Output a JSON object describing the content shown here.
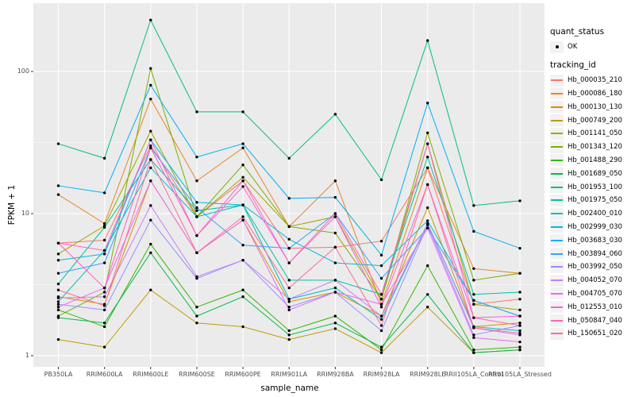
{
  "chart_data": {
    "type": "line",
    "title": "",
    "xlabel": "sample_name",
    "ylabel": "FPKM + 1",
    "y_scale": "log10",
    "ylim": [
      0.83,
      300
    ],
    "y_ticks": [
      {
        "label": "1",
        "value": 1
      },
      {
        "label": "10",
        "value": 10
      },
      {
        "label": "100",
        "value": 100
      }
    ],
    "y_minor_ticks": [
      3.162,
      31.62,
      316
    ],
    "grid": "on",
    "panel_bg": "#EBEBEB",
    "grid_color": "#FFFFFF",
    "point_color": "#000000",
    "legend_position": "right",
    "categories": [
      "PB350LA",
      "RRIM600LA",
      "RRIM600LE",
      "RRIM600SE",
      "RRIM600PE",
      "RRIM901LA",
      "RRIM928BA",
      "RRIM928LA",
      "RRIM928LE",
      "RRII105LA_Control",
      "RRII105LA_Stressed"
    ],
    "series": [
      {
        "name": "Hb_000035_210",
        "color": "#F8766D",
        "values": [
          6.2,
          6.5,
          30,
          9.5,
          17,
          5.7,
          5.8,
          6.4,
          21,
          2.3,
          2.5
        ]
      },
      {
        "name": "Hb_000086_180",
        "color": "#E88526",
        "values": [
          13.6,
          8.5,
          64,
          17,
          29,
          8.1,
          17,
          2.3,
          21,
          4.1,
          3.8
        ]
      },
      {
        "name": "Hb_000130_130",
        "color": "#D89000",
        "values": [
          2.6,
          2.3,
          17,
          5.3,
          9,
          2.4,
          2.8,
          1.9,
          11,
          1.6,
          1.7
        ]
      },
      {
        "name": "Hb_000749_200",
        "color": "#C09B00",
        "values": [
          1.3,
          1.15,
          2.9,
          1.7,
          1.6,
          1.3,
          1.55,
          1.05,
          2.2,
          1.05,
          1.1
        ]
      },
      {
        "name": "Hb_001141_050",
        "color": "#A3A500",
        "values": [
          5.2,
          8.2,
          38,
          9.5,
          18,
          8.1,
          9.5,
          2.5,
          31,
          2.3,
          2.1
        ]
      },
      {
        "name": "Hb_001343_120",
        "color": "#7CAE00",
        "values": [
          1.9,
          2.8,
          105,
          9.5,
          22,
          8.1,
          7.3,
          2.5,
          37,
          3.4,
          3.8
        ]
      },
      {
        "name": "Hb_001488_290",
        "color": "#39B600",
        "values": [
          2.1,
          1.6,
          6.1,
          2.2,
          2.9,
          1.5,
          1.9,
          1.1,
          4.3,
          1.1,
          1.15
        ]
      },
      {
        "name": "Hb_001689_050",
        "color": "#00BB4E",
        "values": [
          1.85,
          1.7,
          5.3,
          1.9,
          2.6,
          1.4,
          1.7,
          1.15,
          2.7,
          1.05,
          1.1
        ]
      },
      {
        "name": "Hb_001953_100",
        "color": "#00BF7D",
        "values": [
          31,
          24.5,
          230,
          52,
          52,
          24.5,
          50,
          17.3,
          165,
          11.4,
          12.3
        ]
      },
      {
        "name": "Hb_001975_050",
        "color": "#00C1A3",
        "values": [
          3.2,
          8.0,
          24,
          10.5,
          11.5,
          3.4,
          3.4,
          2.7,
          25,
          2.7,
          2.8
        ]
      },
      {
        "name": "Hb_002400_010",
        "color": "#00BFC4",
        "values": [
          2.4,
          5.5,
          21,
          9.5,
          11.5,
          2.5,
          3.0,
          1.8,
          8.5,
          1.6,
          1.5
        ]
      },
      {
        "name": "Hb_002999_030",
        "color": "#00BAE0",
        "values": [
          4.7,
          5.2,
          33,
          12,
          11.5,
          6.6,
          4.5,
          4.3,
          8.9,
          2.45,
          1.9
        ]
      },
      {
        "name": "Hb_003683_030",
        "color": "#00B0F6",
        "values": [
          15.7,
          14,
          80,
          25,
          31,
          12.8,
          13,
          5.1,
          60,
          7.5,
          5.7
        ]
      },
      {
        "name": "Hb_003894_060",
        "color": "#35A2FF",
        "values": [
          3.8,
          4.5,
          29,
          11,
          6,
          5.7,
          10,
          3.5,
          7.9,
          2.45,
          1.9
        ]
      },
      {
        "name": "Hb_003992_050",
        "color": "#9590FF",
        "values": [
          2.3,
          2.1,
          9,
          3.5,
          4.7,
          2.2,
          2.8,
          1.5,
          8.3,
          1.4,
          1.63
        ]
      },
      {
        "name": "Hb_004052_070",
        "color": "#C77CFF",
        "values": [
          2.55,
          2.6,
          11.4,
          3.6,
          4.7,
          2.5,
          3.4,
          1.9,
          8.5,
          1.57,
          1.4
        ]
      },
      {
        "name": "Hb_004705_070",
        "color": "#E76BF3",
        "values": [
          2.2,
          3.0,
          17,
          5.3,
          9,
          2.1,
          2.8,
          2.3,
          7.9,
          1.34,
          1.25
        ]
      },
      {
        "name": "Hb_012553_010",
        "color": "#FA62DB",
        "values": [
          6.2,
          5.5,
          33,
          7,
          17,
          4.5,
          9.5,
          2.2,
          16,
          1.85,
          1.9
        ]
      },
      {
        "name": "Hb_050847_040",
        "color": "#FF62BC",
        "values": [
          6.2,
          3.0,
          29,
          7,
          15.5,
          4.5,
          10,
          2.7,
          31,
          1.85,
          1.63
        ]
      },
      {
        "name": "Hb_150651_020",
        "color": "#FF6A98",
        "values": [
          2.9,
          2.25,
          24,
          5.3,
          9.5,
          3.0,
          5.8,
          1.63,
          16,
          1.57,
          1.44
        ]
      }
    ]
  },
  "legend": {
    "quant_status": {
      "title": "quant_status",
      "items": [
        {
          "label": "OK"
        }
      ]
    },
    "tracking_id": {
      "title": "tracking_id"
    }
  },
  "axes": {
    "x_title": "sample_name",
    "y_title": "FPKM + 1"
  }
}
